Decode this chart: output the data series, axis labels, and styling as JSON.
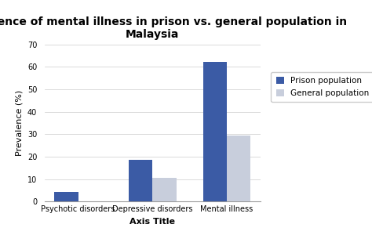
{
  "title": "Prevalence of mental illness in prison vs. general population in\nMalaysia",
  "categories": [
    "Psychotic disorders",
    "Depressive disorders",
    "Mental illness"
  ],
  "prison_values": [
    4.5,
    18.5,
    62.0
  ],
  "general_values": [
    0,
    10.5,
    29.5
  ],
  "prison_color": "#3B5BA5",
  "general_color": "#C8CEDC",
  "xlabel": "Axis Title",
  "ylabel": "Prevalence (%)",
  "ylim": [
    0,
    70
  ],
  "yticks": [
    0,
    10,
    20,
    30,
    40,
    50,
    60,
    70
  ],
  "legend_labels": [
    "Prison population",
    "General population"
  ],
  "bar_width": 0.32,
  "title_fontsize": 10,
  "axis_label_fontsize": 8,
  "tick_fontsize": 7,
  "legend_fontsize": 7.5,
  "background_color": "#FFFFFF"
}
